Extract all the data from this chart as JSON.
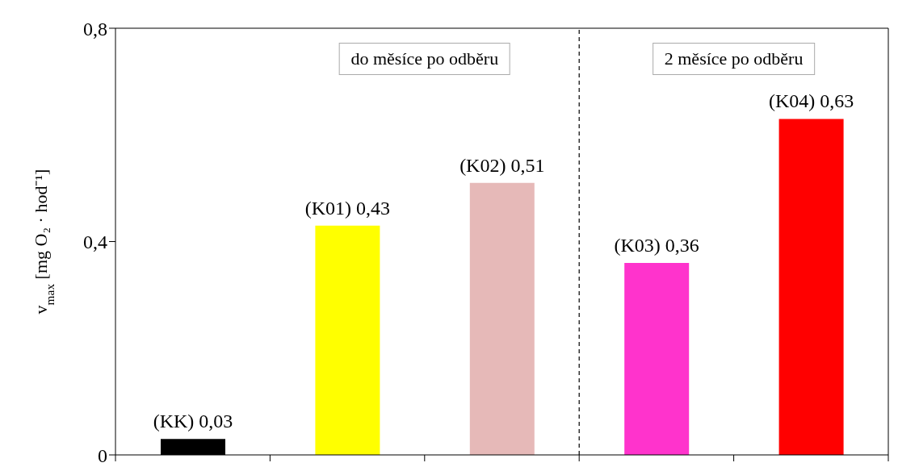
{
  "chart_data": {
    "type": "bar",
    "ylabel": "v$_{max}$ [mg O₂ · hod⁻¹]",
    "categories": [
      null,
      null,
      null,
      null,
      null
    ],
    "values": [
      0.03,
      0.43,
      0.51,
      0.36,
      0.63
    ],
    "colors": [
      "#000000",
      "#ffff00",
      "#e6b9b8",
      "#ff33cc",
      "#ff0000"
    ],
    "value_labels": [
      "(KK) 0,03",
      "(K01) 0,43",
      "(K02) 0,51",
      "(K03) 0,36",
      "(K04) 0,63"
    ],
    "ylim": [
      0,
      0.8
    ],
    "yticks": [
      {
        "value": 0,
        "label": "0"
      },
      {
        "value": 0.4,
        "label": "0,4"
      },
      {
        "value": 0.8,
        "label": "0,8"
      }
    ],
    "annotations": [
      "do měsíce po odběru",
      "2 měsíce po odběru"
    ],
    "tick_labels": "y"
  }
}
